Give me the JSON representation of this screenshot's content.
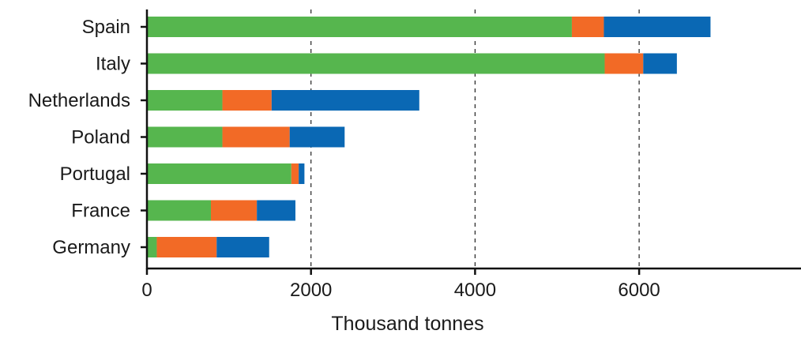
{
  "chart_data": {
    "type": "bar",
    "orientation": "horizontal",
    "stacked": true,
    "title": "",
    "xlabel": "Thousand tonnes",
    "ylabel": "",
    "xlim": [
      0,
      8000
    ],
    "xticks": [
      0,
      2000,
      4000,
      6000
    ],
    "xtick_labels": [
      "0",
      "2000",
      "4000",
      "6000"
    ],
    "grid": "dashed vertical lines at 2000, 4000, 6000",
    "legend": "none",
    "categories": [
      "Spain",
      "Italy",
      "Netherlands",
      "Poland",
      "Portugal",
      "France",
      "Germany"
    ],
    "series": [
      {
        "color": "#56b64e",
        "values": [
          5180,
          5580,
          920,
          920,
          1760,
          780,
          120
        ]
      },
      {
        "color": "#f26a26",
        "values": [
          390,
          470,
          600,
          820,
          90,
          560,
          730
        ]
      },
      {
        "color": "#0a68b4",
        "values": [
          1300,
          410,
          1800,
          670,
          70,
          470,
          640
        ]
      }
    ]
  }
}
